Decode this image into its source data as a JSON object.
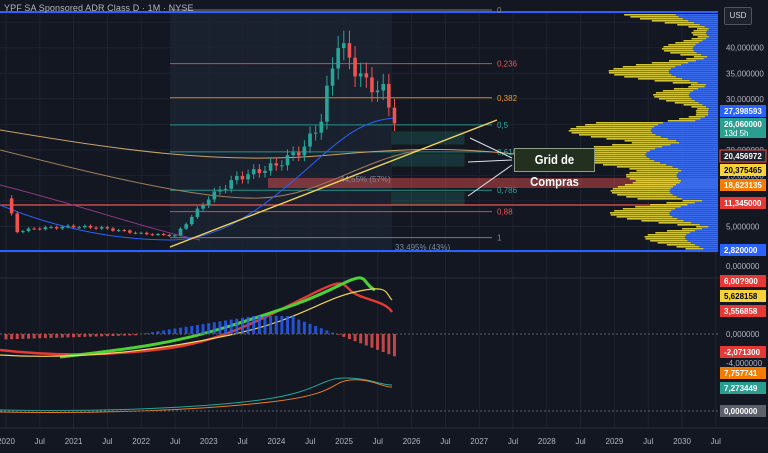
{
  "header": {
    "title": "YPF SA Sponsored ADR Class D · 1M · NYSE",
    "currency_button": "USD"
  },
  "annotation": {
    "callout": "Grid de Compras"
  },
  "colors": {
    "background": "#131722",
    "up": "#26a69a",
    "down": "#ef5350",
    "trendline": "#f2d25a",
    "volume_profile": "#f2e33a",
    "volume_profile_down": "#2962ff"
  },
  "chart_data": [
    {
      "type": "candlestick",
      "title": "YPF SA Sponsored ADR Class D · 1M · NYSE",
      "x_ticks": [
        "2020",
        "Jul",
        "2021",
        "Jul",
        "2022",
        "Jul",
        "2023",
        "Jul",
        "2024",
        "Jul",
        "2025",
        "Jul",
        "2026",
        "Jul",
        "2027",
        "Jul",
        "2028",
        "Jul",
        "2029",
        "Jul",
        "2030",
        "Jul"
      ],
      "y_ticks": [
        "40,000000",
        "35,000000",
        "30,000000",
        "25,000000",
        "20,000000",
        "15,000000",
        "10,000000",
        "5,000000",
        "0,000000"
      ],
      "ylim": [
        0,
        47
      ],
      "anchor_points": [
        {
          "t": "2020-01",
          "close": 10.5
        },
        {
          "t": "2020-03",
          "close": 4.0
        },
        {
          "t": "2020-06",
          "close": 4.6
        },
        {
          "t": "2021-01",
          "close": 5.0
        },
        {
          "t": "2021-06",
          "close": 4.7
        },
        {
          "t": "2022-01",
          "close": 3.6
        },
        {
          "t": "2022-07",
          "close": 3.2
        },
        {
          "t": "2023-01",
          "close": 10.6
        },
        {
          "t": "2023-06",
          "close": 14.5
        },
        {
          "t": "2024-01",
          "close": 17.0
        },
        {
          "t": "2024-06",
          "close": 20.5
        },
        {
          "t": "2024-09",
          "close": 26.0
        },
        {
          "t": "2024-12",
          "close": 41.5
        },
        {
          "t": "2025-02",
          "close": 37.5
        },
        {
          "t": "2025-05",
          "close": 33.0
        },
        {
          "t": "2025-08",
          "close": 31.5
        },
        {
          "t": "2025-10",
          "close": 26.06
        }
      ],
      "fib_levels": [
        {
          "label": "0",
          "value": 47.4
        },
        {
          "label": "0,236",
          "value": 36.9
        },
        {
          "label": "0,382",
          "value": 30.2
        },
        {
          "label": "0,5",
          "value": 24.9
        },
        {
          "label": "0,618",
          "value": 19.6
        },
        {
          "label": "0,786",
          "value": 12.1
        },
        {
          "label": "0,88",
          "value": 7.9
        },
        {
          "label": "1",
          "value": 2.82
        }
      ],
      "fib_annotations": [
        "44,55% (57%)",
        "33,495% (43%)"
      ],
      "price_labels": [
        {
          "text": "27,398593",
          "kind": "blue"
        },
        {
          "text": "26,060000",
          "kind": "current",
          "countdown": "13d 5h"
        },
        {
          "text": "20,456972",
          "kind": "white"
        },
        {
          "text": "20,375465",
          "kind": "yellow"
        },
        {
          "text": "18,623135",
          "kind": "orange"
        },
        {
          "text": "11,345000",
          "kind": "red"
        },
        {
          "text": "2,820000",
          "kind": "blue"
        }
      ],
      "axis_zero_label": "0,000000",
      "volume_profile": "visible-range histogram on right edge"
    },
    {
      "type": "line",
      "panel": "indicator-1",
      "series": [
        {
          "values": [
            0.6,
            0.5,
            0.7,
            1.2,
            2.0,
            3.0,
            4.2,
            5.0,
            5.8,
            6.4,
            6.2,
            5.6
          ]
        }
      ],
      "price_labels": [
        "6,00?900",
        "5,628158",
        "3,556858"
      ]
    },
    {
      "type": "bar",
      "panel": "indicator-2",
      "y_ticks": [
        "0,000000",
        "-4,000000"
      ],
      "price_labels": [
        "-2,071300",
        "7,757741",
        "7,273449"
      ]
    },
    {
      "type": "line",
      "panel": "indicator-3",
      "y_ticks": [
        "0,000000"
      ]
    }
  ]
}
